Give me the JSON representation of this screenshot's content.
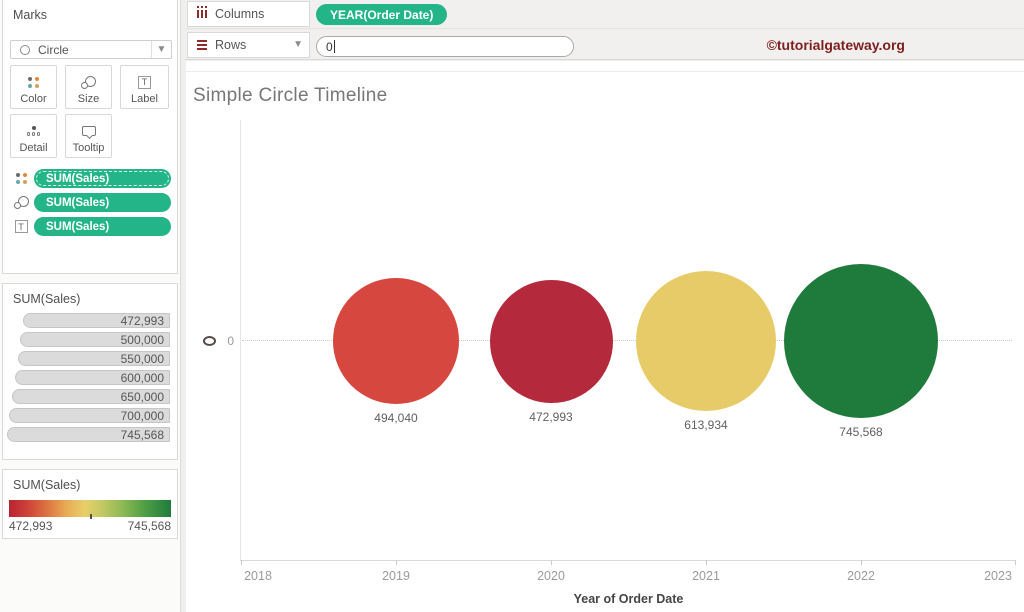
{
  "app": {
    "watermark": "©tutorialgateway.org"
  },
  "marks_card": {
    "title": "Marks",
    "mark_type_selector": {
      "value": "Circle"
    },
    "buttons": {
      "color": "Color",
      "size": "Size",
      "label": "Label",
      "detail": "Detail",
      "tooltip": "Tooltip"
    },
    "pills": [
      {
        "icon": "color-icon",
        "label": "SUM(Sales)"
      },
      {
        "icon": "size-icon",
        "label": "SUM(Sales)"
      },
      {
        "icon": "label-icon",
        "label": "SUM(Sales)"
      }
    ],
    "pill_color": "#23b487"
  },
  "size_legend": {
    "title": "SUM(Sales)",
    "bars": [
      "472,993",
      "500,000",
      "550,000",
      "600,000",
      "650,000",
      "700,000",
      "745,568"
    ]
  },
  "color_legend": {
    "title": "SUM(Sales)",
    "min": "472,993",
    "max": "745,568",
    "gradient_colors": {
      "low": "#b92433",
      "mid": "#e8cf69",
      "high": "#1f7b3c"
    }
  },
  "shelves": {
    "columns": {
      "label": "Columns",
      "pill": "YEAR(Order Date)"
    },
    "rows": {
      "label": "Rows",
      "input_value": "0"
    }
  },
  "sheet_title": "Simple Circle Timeline",
  "chart_data": {
    "type": "scatter",
    "title": "Simple Circle Timeline",
    "xlabel": "Year of Order Date",
    "x_ticks": [
      "2018",
      "2019",
      "2020",
      "2021",
      "2022",
      "2023"
    ],
    "xlim": [
      2018,
      2023
    ],
    "y_zero_label": "0",
    "grid": "dotted zero line only",
    "legend_position": "left",
    "size_by": "SUM(Sales)",
    "color_by": "SUM(Sales) red-yellow-green diverging",
    "points": [
      {
        "year": 2019,
        "value": 494040,
        "label": "494,040",
        "color": "#d6483f"
      },
      {
        "year": 2020,
        "value": 472993,
        "label": "472,993",
        "color": "#b42a3c"
      },
      {
        "year": 2021,
        "value": 613934,
        "label": "613,934",
        "color": "#e7cb68"
      },
      {
        "year": 2022,
        "value": 745568,
        "label": "745,568",
        "color": "#1f7b3c"
      }
    ]
  }
}
